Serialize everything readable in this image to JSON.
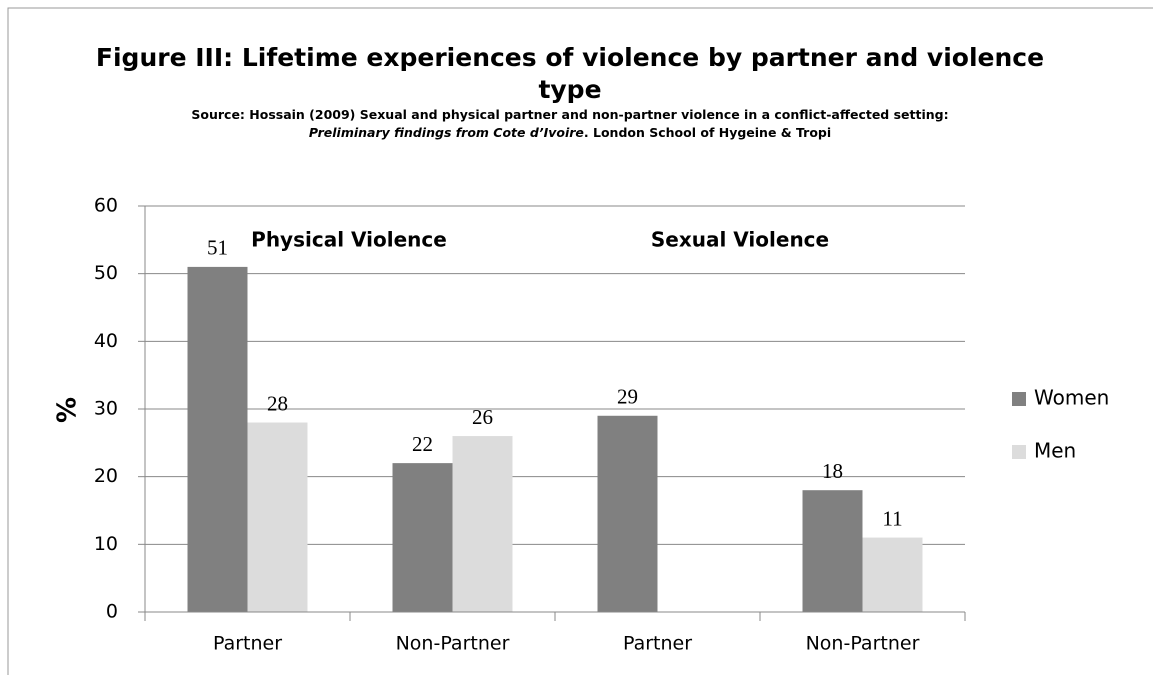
{
  "chart_data": {
    "type": "bar",
    "title": "Figure III: Lifetime experiences of violence by partner and violence type",
    "subtitle": [
      "Source: Hossain (2009) Sexual and physical  partner and non-partner violence in a conflict-affected setting: ",
      "Preliminary findings from Cote d’Ivoire",
      ". London School of Hygeine & Tropi"
    ],
    "y_label": "%",
    "annotations": [
      "Physical Violence",
      "Sexual Violence"
    ],
    "categories": [
      "Partner",
      "Non-Partner",
      "Partner",
      "Non-Partner"
    ],
    "series": [
      {
        "name": "Women",
        "color": "#808080",
        "values": [
          51,
          22,
          29,
          18
        ]
      },
      {
        "name": "Men",
        "color": "#dcdcdc",
        "values": [
          28,
          26,
          null,
          11
        ]
      }
    ],
    "ylim": [
      0,
      60
    ],
    "yticks": [
      0,
      10,
      20,
      30,
      40,
      50,
      60
    ],
    "grid": true,
    "legend": "right"
  }
}
